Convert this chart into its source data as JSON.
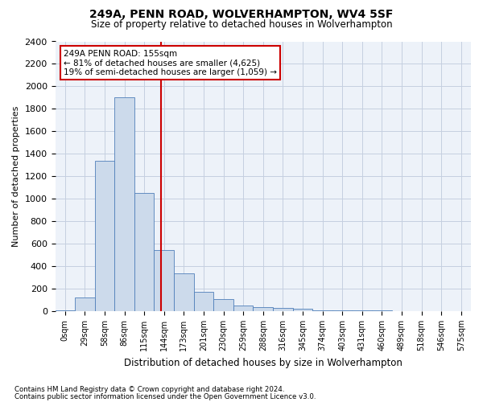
{
  "title": "249A, PENN ROAD, WOLVERHAMPTON, WV4 5SF",
  "subtitle": "Size of property relative to detached houses in Wolverhampton",
  "xlabel": "Distribution of detached houses by size in Wolverhampton",
  "ylabel": "Number of detached properties",
  "footnote1": "Contains HM Land Registry data © Crown copyright and database right 2024.",
  "footnote2": "Contains public sector information licensed under the Open Government Licence v3.0.",
  "annotation_line1": "249A PENN ROAD: 155sqm",
  "annotation_line2": "← 81% of detached houses are smaller (4,625)",
  "annotation_line3": "19% of semi-detached houses are larger (1,059) →",
  "bar_color": "#ccdaeb",
  "bar_edge_color": "#4f7fba",
  "ref_line_color": "#cc0000",
  "annotation_box_edgecolor": "#cc0000",
  "categories": [
    "0sqm",
    "29sqm",
    "58sqm",
    "86sqm",
    "115sqm",
    "144sqm",
    "173sqm",
    "201sqm",
    "230sqm",
    "259sqm",
    "288sqm",
    "316sqm",
    "345sqm",
    "374sqm",
    "403sqm",
    "431sqm",
    "460sqm",
    "489sqm",
    "518sqm",
    "546sqm",
    "575sqm"
  ],
  "values": [
    5,
    120,
    1340,
    1900,
    1050,
    540,
    335,
    170,
    105,
    50,
    35,
    25,
    20,
    10,
    5,
    5,
    5,
    2,
    2,
    2,
    2
  ],
  "ylim": [
    0,
    2400
  ],
  "yticks": [
    0,
    200,
    400,
    600,
    800,
    1000,
    1200,
    1400,
    1600,
    1800,
    2000,
    2200,
    2400
  ],
  "ref_line_x": 3.48,
  "bg_color": "#edf2f9",
  "grid_color": "#c5cfe0",
  "figsize": [
    6.0,
    5.0
  ],
  "dpi": 100
}
